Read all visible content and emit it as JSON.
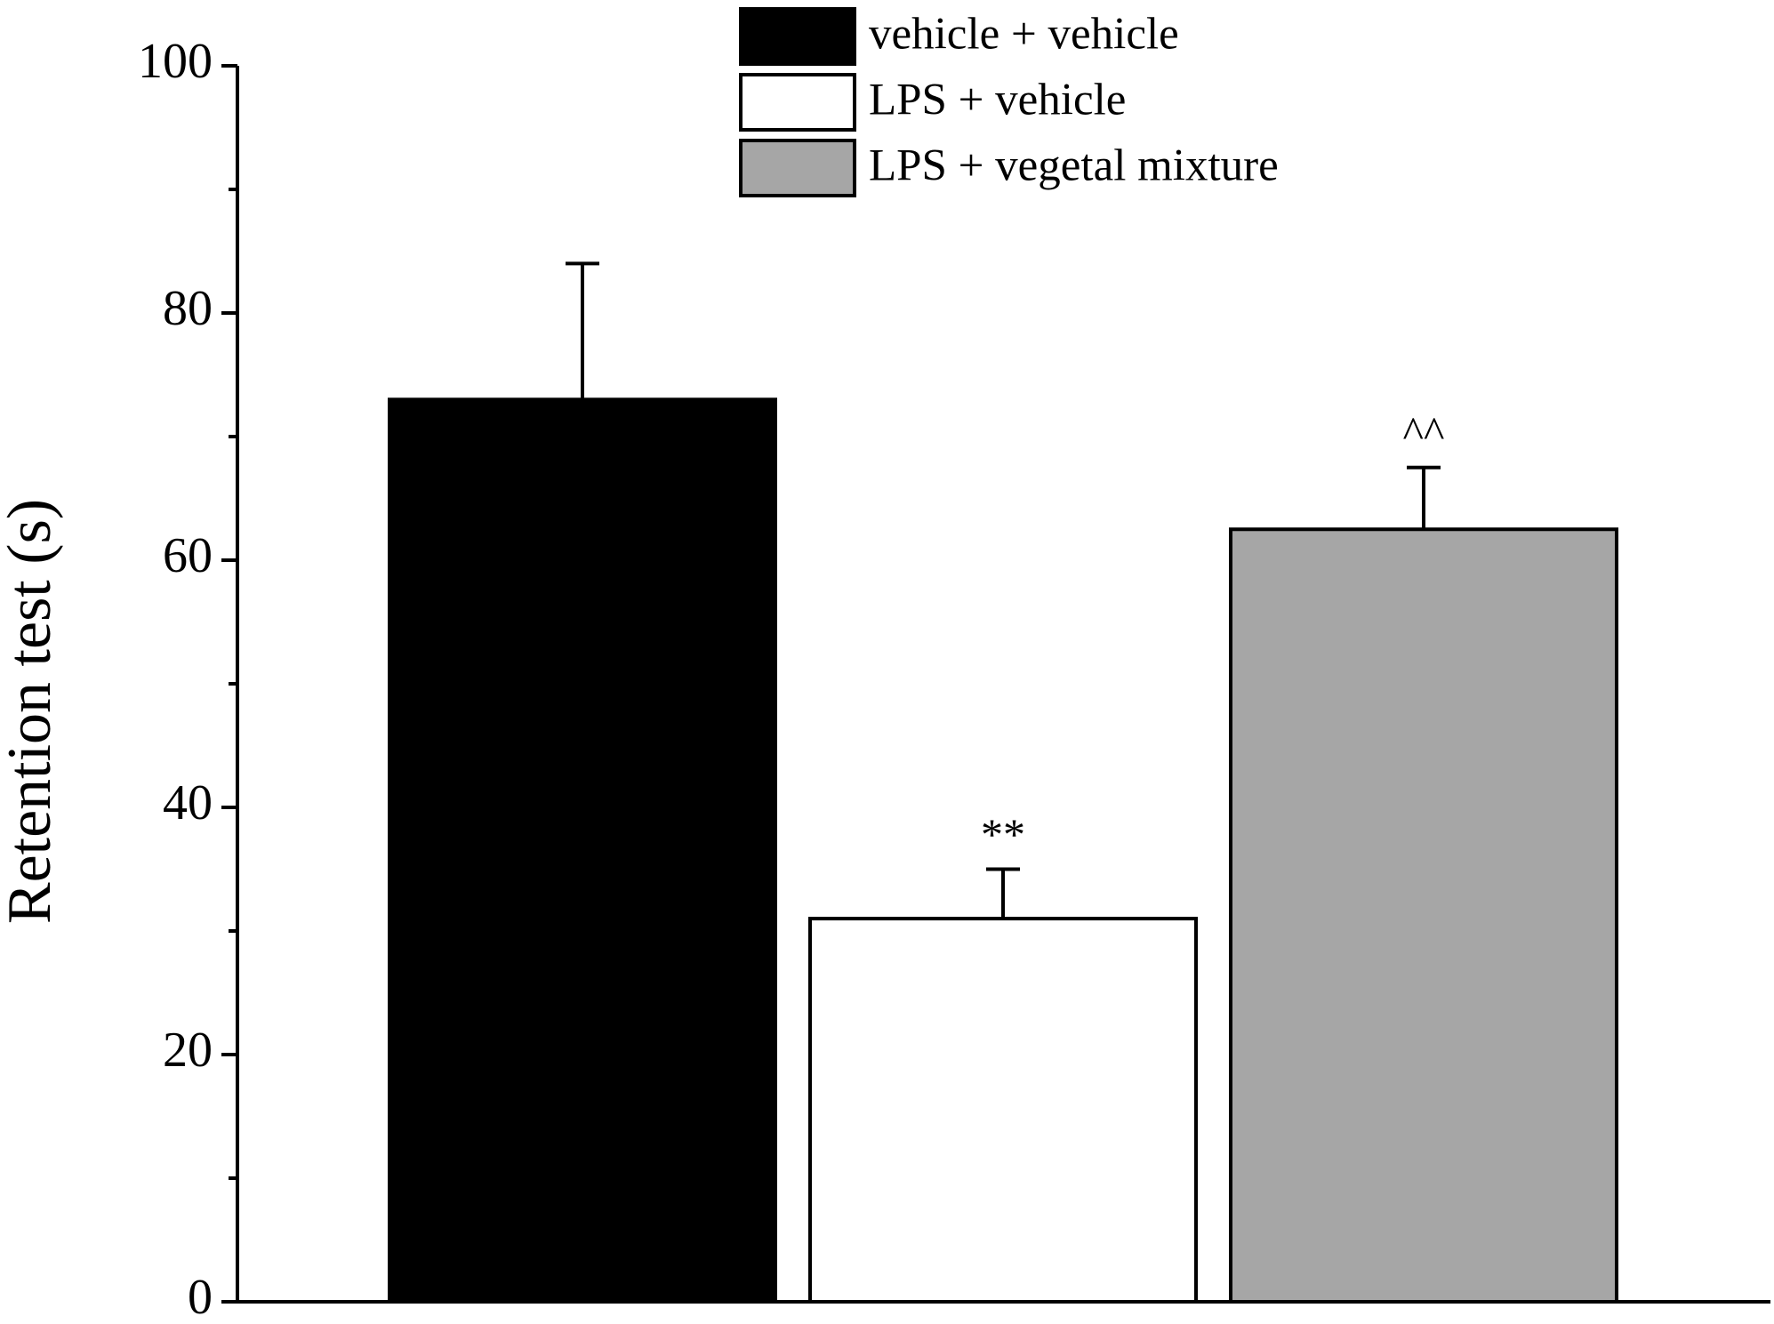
{
  "chart_data": {
    "type": "bar",
    "ylabel": "Retention test (s)",
    "categories": [
      null,
      null,
      null
    ],
    "series": [
      {
        "name": "vehicle + vehicle",
        "color": "#000000",
        "values": [
          73,
          null,
          null
        ],
        "errors": [
          11,
          null,
          null
        ]
      },
      {
        "name": "LPS + vehicle",
        "color": "#ffffff",
        "values": [
          null,
          31,
          null
        ],
        "errors": [
          null,
          4,
          null
        ],
        "annotation": "**"
      },
      {
        "name": "LPS + vegetal mixture",
        "color": "#a6a6a6",
        "values": [
          null,
          null,
          62.5
        ],
        "errors": [
          null,
          null,
          5
        ],
        "annotation": "^^"
      }
    ],
    "ylim": [
      0,
      100
    ],
    "yticks": [
      0,
      20,
      40,
      60,
      80,
      100
    ],
    "yminorticks": [
      10,
      30,
      50,
      70,
      90
    ],
    "grid": false,
    "legend": "top"
  }
}
